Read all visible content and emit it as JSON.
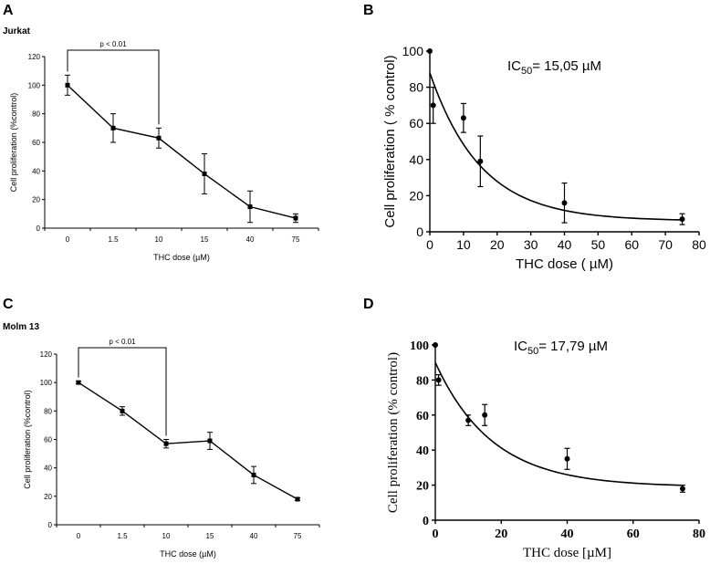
{
  "chart_data": [
    {
      "panel": "A",
      "type": "line",
      "title": "Jurkat",
      "xlabel": "THC dose (µM)",
      "ylabel": "Cell proliferation (%control)",
      "categories": [
        "0",
        "1.5",
        "10",
        "15",
        "40",
        "75"
      ],
      "values": [
        100,
        70,
        63,
        38,
        15,
        7
      ],
      "errors": [
        7,
        10,
        7,
        14,
        11,
        3
      ],
      "ylim": [
        0,
        120
      ],
      "yticks": [
        "0",
        "20",
        "40",
        "60",
        "80",
        "100",
        "120"
      ],
      "annotation": "p < 0.01"
    },
    {
      "panel": "B",
      "type": "scatter",
      "xlabel": "THC dose ( µM)",
      "ylabel": "Cell proliferation  ( % control)",
      "x": [
        0,
        1,
        10,
        15,
        40,
        75
      ],
      "y": [
        100,
        70,
        63,
        39,
        16,
        7
      ],
      "errors": [
        0,
        10,
        8,
        14,
        11,
        3
      ],
      "xlim": [
        0,
        80
      ],
      "ylim": [
        0,
        100
      ],
      "xticks": [
        "0",
        "10",
        "20",
        "30",
        "40",
        "50",
        "60",
        "70",
        "80"
      ],
      "yticks": [
        "0",
        "20",
        "40",
        "60",
        "80",
        "100"
      ],
      "fit": {
        "y0": 6,
        "y_start": 88,
        "k": 0.066
      },
      "ic50_prefix": "IC",
      "ic50_sub": "50",
      "ic50_value": "= 15,05 µM"
    },
    {
      "panel": "C",
      "type": "line",
      "title": "Molm 13",
      "xlabel": "THC dose (µM)",
      "ylabel": "Cell proliferation (%control)",
      "categories": [
        "0",
        "1.5",
        "10",
        "15",
        "40",
        "75"
      ],
      "values": [
        100,
        80,
        57,
        59,
        35,
        18
      ],
      "errors": [
        1,
        3,
        3,
        6,
        6,
        1
      ],
      "ylim": [
        0,
        120
      ],
      "yticks": [
        "0",
        "20",
        "40",
        "60",
        "80",
        "100",
        "120"
      ],
      "annotation": "p < 0.01"
    },
    {
      "panel": "D",
      "type": "scatter",
      "xlabel": "THC dose [µM]",
      "ylabel": "Cell proliferation (% control)",
      "x": [
        0,
        1,
        10,
        15,
        40,
        75
      ],
      "y": [
        100,
        80,
        57,
        60,
        35,
        18
      ],
      "errors": [
        0,
        3,
        3,
        6,
        6,
        2
      ],
      "xlim": [
        0,
        80
      ],
      "ylim": [
        0,
        100
      ],
      "xticks": [
        "0",
        "20",
        "40",
        "60",
        "80"
      ],
      "yticks": [
        "0",
        "20",
        "40",
        "60",
        "80",
        "100"
      ],
      "fit": {
        "y0": 19,
        "y_start": 90,
        "k": 0.058
      },
      "ic50_prefix": "IC",
      "ic50_sub": "50",
      "ic50_value": "= 17,79 µM"
    }
  ]
}
